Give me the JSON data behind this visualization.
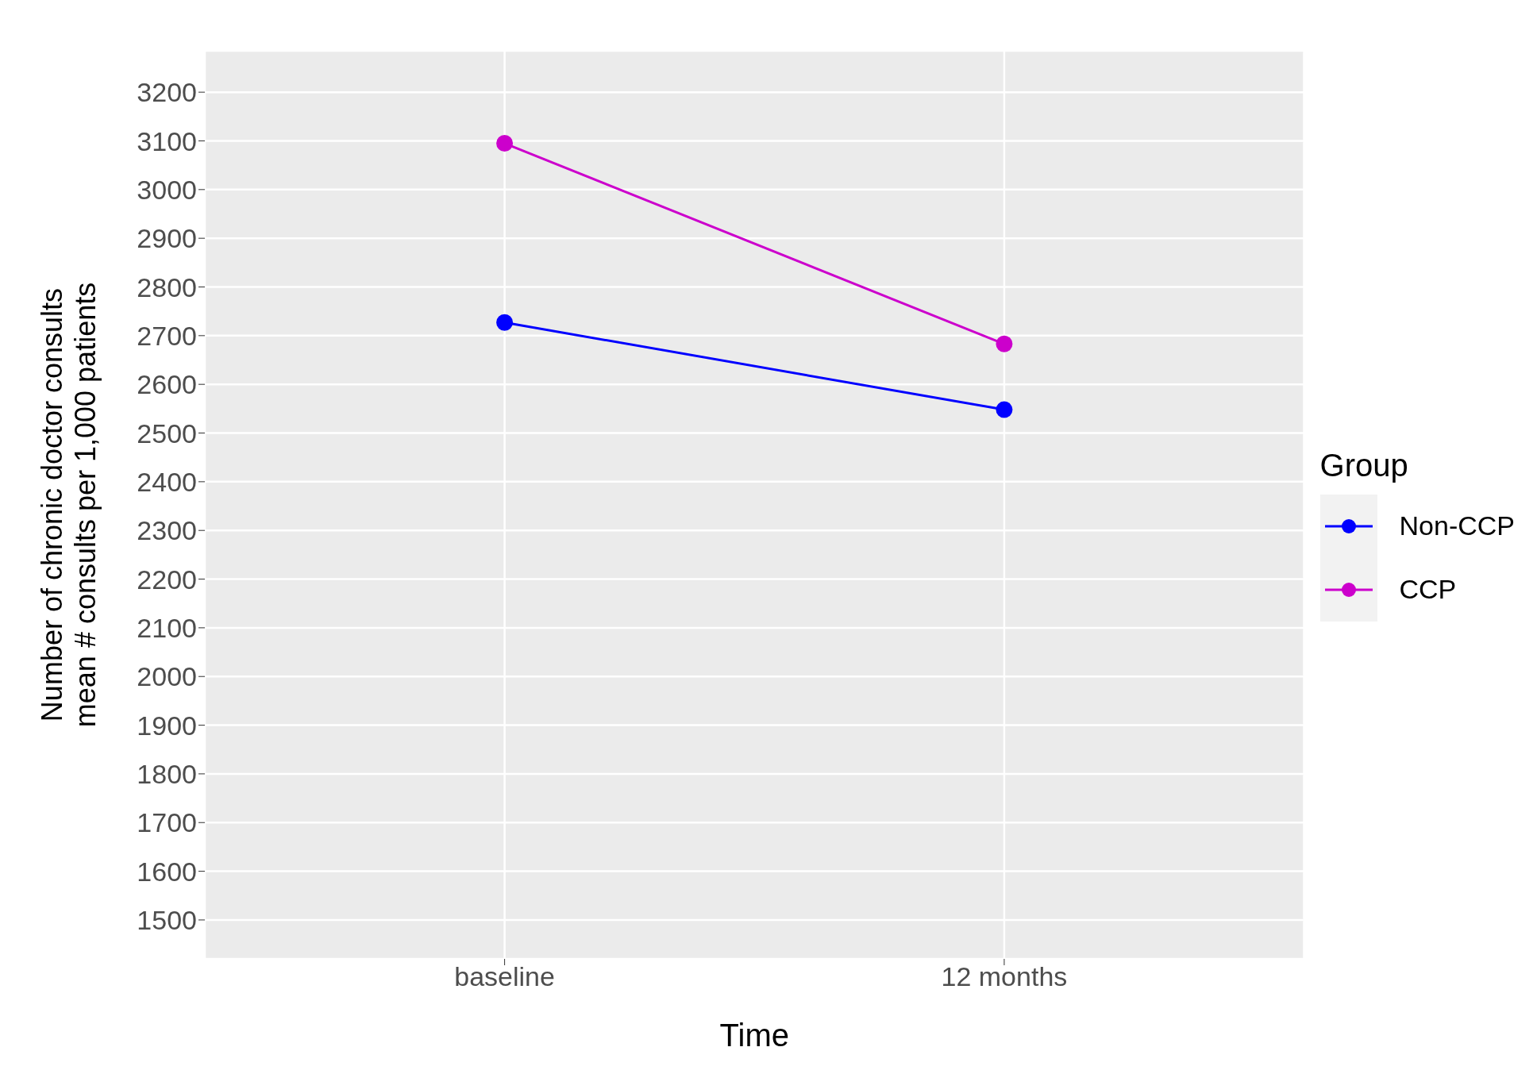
{
  "chart_data": {
    "type": "line",
    "xlabel": "Time",
    "ylabel": "Number of chronic doctor consults\nmean # consults per 1,000 patients",
    "legend_title": "Group",
    "categories": [
      "baseline",
      "12 months"
    ],
    "series": [
      {
        "name": "Non-CCP",
        "color": "#0000ff",
        "values": [
          2727,
          2548
        ]
      },
      {
        "name": "CCP",
        "color": "#cc00cc",
        "values": [
          3095,
          2683
        ]
      }
    ],
    "ylim": [
      1420,
      3285
    ],
    "yticks": [
      1500,
      1600,
      1700,
      1800,
      1900,
      2000,
      2100,
      2200,
      2300,
      2400,
      2500,
      2600,
      2700,
      2800,
      2900,
      3000,
      3100,
      3200
    ],
    "grid": true,
    "legend": "right",
    "marker": "circle",
    "line_style": "solid"
  }
}
